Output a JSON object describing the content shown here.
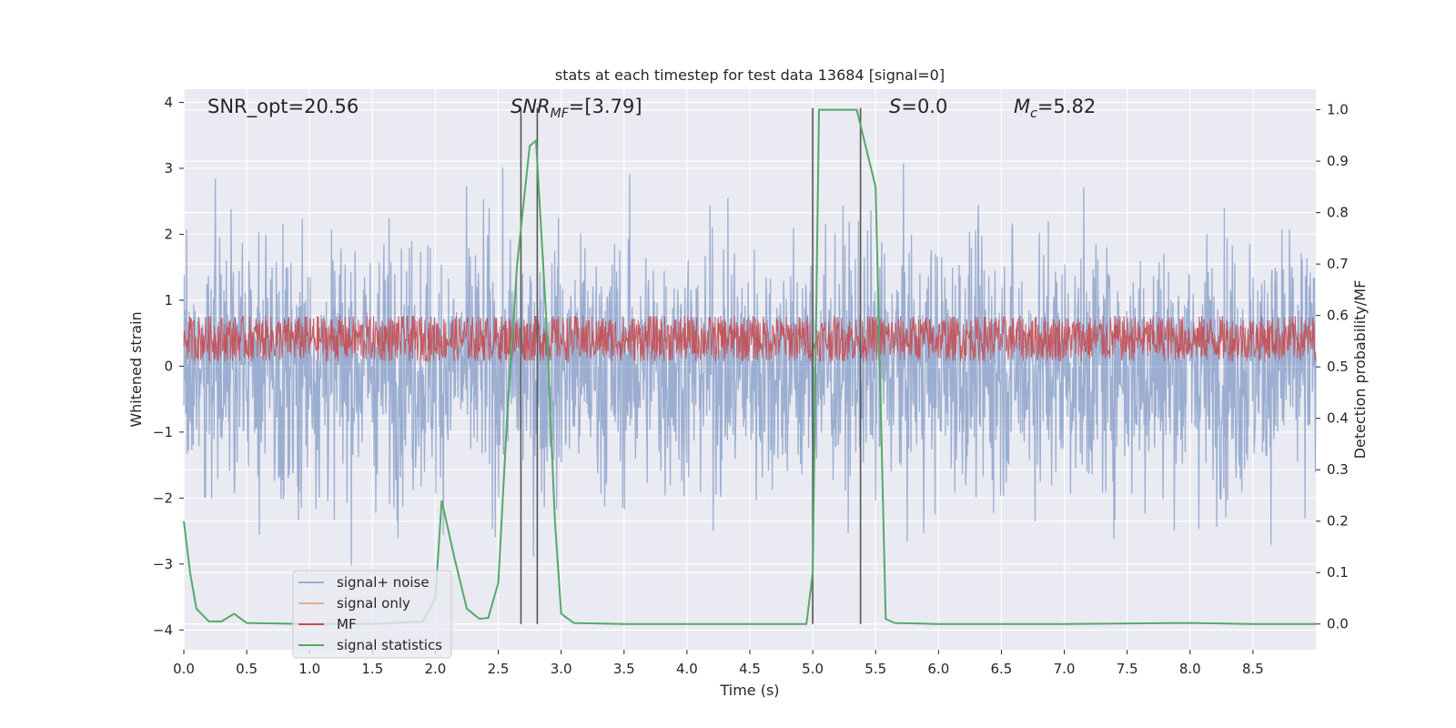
{
  "chart_data": {
    "type": "line",
    "title": "stats at each timestep for test data 13684 [signal=0]",
    "xlabel": "Time (s)",
    "ylabel": "Whitened strain",
    "ylabel_right": "Detection probability/MF",
    "xlim": [
      0.0,
      9.0
    ],
    "ylim": [
      -4.3,
      4.2
    ],
    "ylim_right": [
      -0.05,
      1.04
    ],
    "x_ticks": [
      "0.0",
      "0.5",
      "1.0",
      "1.5",
      "2.0",
      "2.5",
      "3.0",
      "3.5",
      "4.0",
      "4.5",
      "5.0",
      "5.5",
      "6.0",
      "6.5",
      "7.0",
      "7.5",
      "8.0",
      "8.5"
    ],
    "y_ticks": [
      "−4",
      "−3",
      "−2",
      "−1",
      "0",
      "1",
      "2",
      "3",
      "4"
    ],
    "y_ticks_right": [
      "0.0",
      "0.1",
      "0.2",
      "0.3",
      "0.4",
      "0.5",
      "0.6",
      "0.7",
      "0.8",
      "0.9",
      "1.0"
    ],
    "grid": true,
    "legend_position": "lower-left",
    "annotations": {
      "snr_opt": "SNR_opt=20.56",
      "snr_mf_base": "SNR",
      "snr_mf_sub": "MF",
      "snr_mf_rest": "=[3.79]",
      "s_label": "S",
      "s_rest": "=0.0",
      "mc_base": "M",
      "mc_sub": "c",
      "mc_rest": "=5.82"
    },
    "vertical_lines": [
      2.68,
      2.81,
      5.0,
      5.38
    ],
    "series": [
      {
        "name": "signal+ noise",
        "color": "#4c72b0",
        "noise_std": 1.0,
        "spread_range": [
          -4.0,
          3.8
        ]
      },
      {
        "name": "signal only",
        "color": "#dd8452",
        "values": []
      },
      {
        "name": "MF",
        "color": "#c44e52",
        "noise_band_right": [
          0.51,
          0.6
        ]
      },
      {
        "name": "signal statistics",
        "color": "#55a868",
        "x": [
          0.0,
          0.05,
          0.1,
          0.2,
          0.3,
          0.4,
          0.5,
          1.0,
          1.5,
          1.9,
          2.0,
          2.05,
          2.15,
          2.25,
          2.35,
          2.42,
          2.5,
          2.57,
          2.65,
          2.75,
          2.8,
          2.88,
          2.95,
          3.0,
          3.1,
          3.5,
          4.0,
          4.5,
          4.95,
          5.0,
          5.05,
          5.2,
          5.35,
          5.5,
          5.58,
          5.65,
          6.0,
          7.0,
          8.0,
          8.5,
          9.0
        ],
        "values": [
          0.2,
          0.1,
          0.03,
          0.005,
          0.005,
          0.02,
          0.002,
          0.0,
          0.0,
          0.005,
          0.05,
          0.24,
          0.13,
          0.03,
          0.01,
          0.012,
          0.08,
          0.4,
          0.7,
          0.93,
          0.94,
          0.6,
          0.2,
          0.02,
          0.002,
          0.0,
          0.0,
          0.0,
          0.0,
          0.1,
          1.0,
          1.0,
          1.0,
          0.85,
          0.01,
          0.002,
          0.0,
          0.0,
          0.002,
          0.0,
          0.0
        ]
      }
    ]
  }
}
